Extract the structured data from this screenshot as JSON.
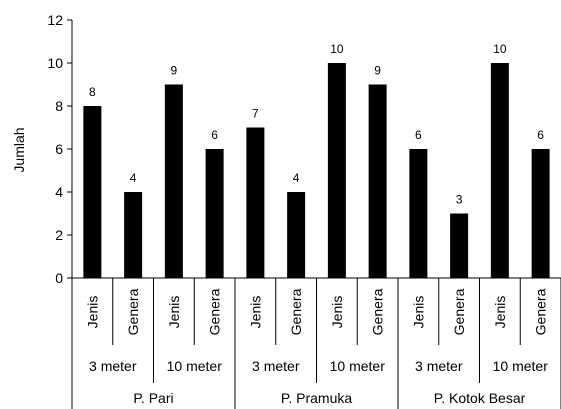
{
  "chart_data": {
    "type": "bar",
    "title": "",
    "ylabel": "Jumlah",
    "xlabel": "",
    "ylim": [
      0,
      12
    ],
    "yticks": [
      0,
      2,
      4,
      6,
      8,
      10,
      12
    ],
    "grid": false,
    "legend": "none",
    "bar_color": "#000000",
    "categories": [
      "Jenis",
      "Genera",
      "Jenis",
      "Genera",
      "Jenis",
      "Genera",
      "Jenis",
      "Genera",
      "Jenis",
      "Genera",
      "Jenis",
      "Genera"
    ],
    "values": [
      8,
      4,
      9,
      6,
      7,
      4,
      10,
      9,
      6,
      3,
      10,
      6
    ],
    "depth_groups": [
      "3 meter",
      "10 meter",
      "3 meter",
      "10 meter",
      "3 meter",
      "10 meter"
    ],
    "island_groups": [
      "P. Pari",
      "P. Pramuka",
      "P. Kotok Besar"
    ]
  }
}
